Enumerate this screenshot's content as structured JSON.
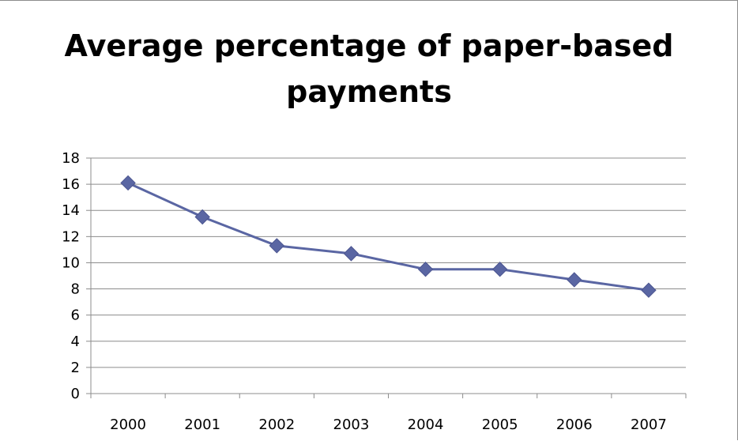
{
  "chart_data": {
    "type": "line",
    "title_lines": [
      "Average percentage of paper-based",
      "payments"
    ],
    "xlabel": "",
    "ylabel": "",
    "categories": [
      "2000",
      "2001",
      "2002",
      "2003",
      "2004",
      "2005",
      "2006",
      "2007"
    ],
    "series": [
      {
        "values": [
          16.1,
          13.5,
          11.3,
          10.7,
          9.5,
          9.5,
          8.7,
          7.9
        ],
        "color": "#5a66a3",
        "marker": "diamond"
      }
    ],
    "ylim": [
      0,
      18
    ],
    "yticks": [
      0,
      2,
      4,
      6,
      8,
      10,
      12,
      14,
      16,
      18
    ],
    "grid": true,
    "legend": "none"
  }
}
